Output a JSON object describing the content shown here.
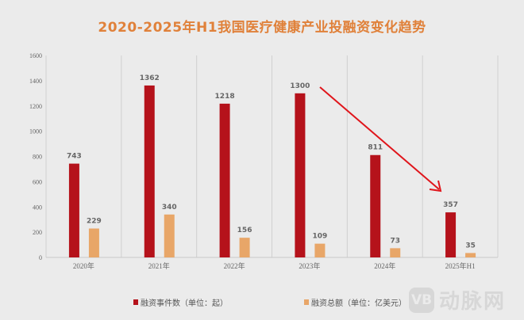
{
  "chart_data": {
    "type": "bar",
    "title": "2020-2025年H1我国医疗健康产业投融资变化趋势",
    "categories": [
      "2020年",
      "2021年",
      "2022年",
      "2023年",
      "2024年",
      "2025年H1"
    ],
    "series": [
      {
        "name": "融资事件数（单位：起）",
        "color": "#b5121b",
        "values": [
          743,
          1362,
          1218,
          1300,
          811,
          357
        ]
      },
      {
        "name": "融资总额（单位：亿美元）",
        "color": "#e8a668",
        "values": [
          229,
          340,
          156,
          109,
          73,
          35
        ]
      }
    ],
    "ylim": [
      0,
      1600
    ],
    "yticks": [
      0,
      200,
      400,
      600,
      800,
      1000,
      1200,
      1400,
      1600
    ],
    "grid": "vertical separators",
    "legend": "bottom",
    "annotation": "red arrow trending downward from 2023 to 2025H1",
    "xlabel": "",
    "ylabel": ""
  },
  "watermark": {
    "logo_text": "VB",
    "text": "动脉网"
  }
}
